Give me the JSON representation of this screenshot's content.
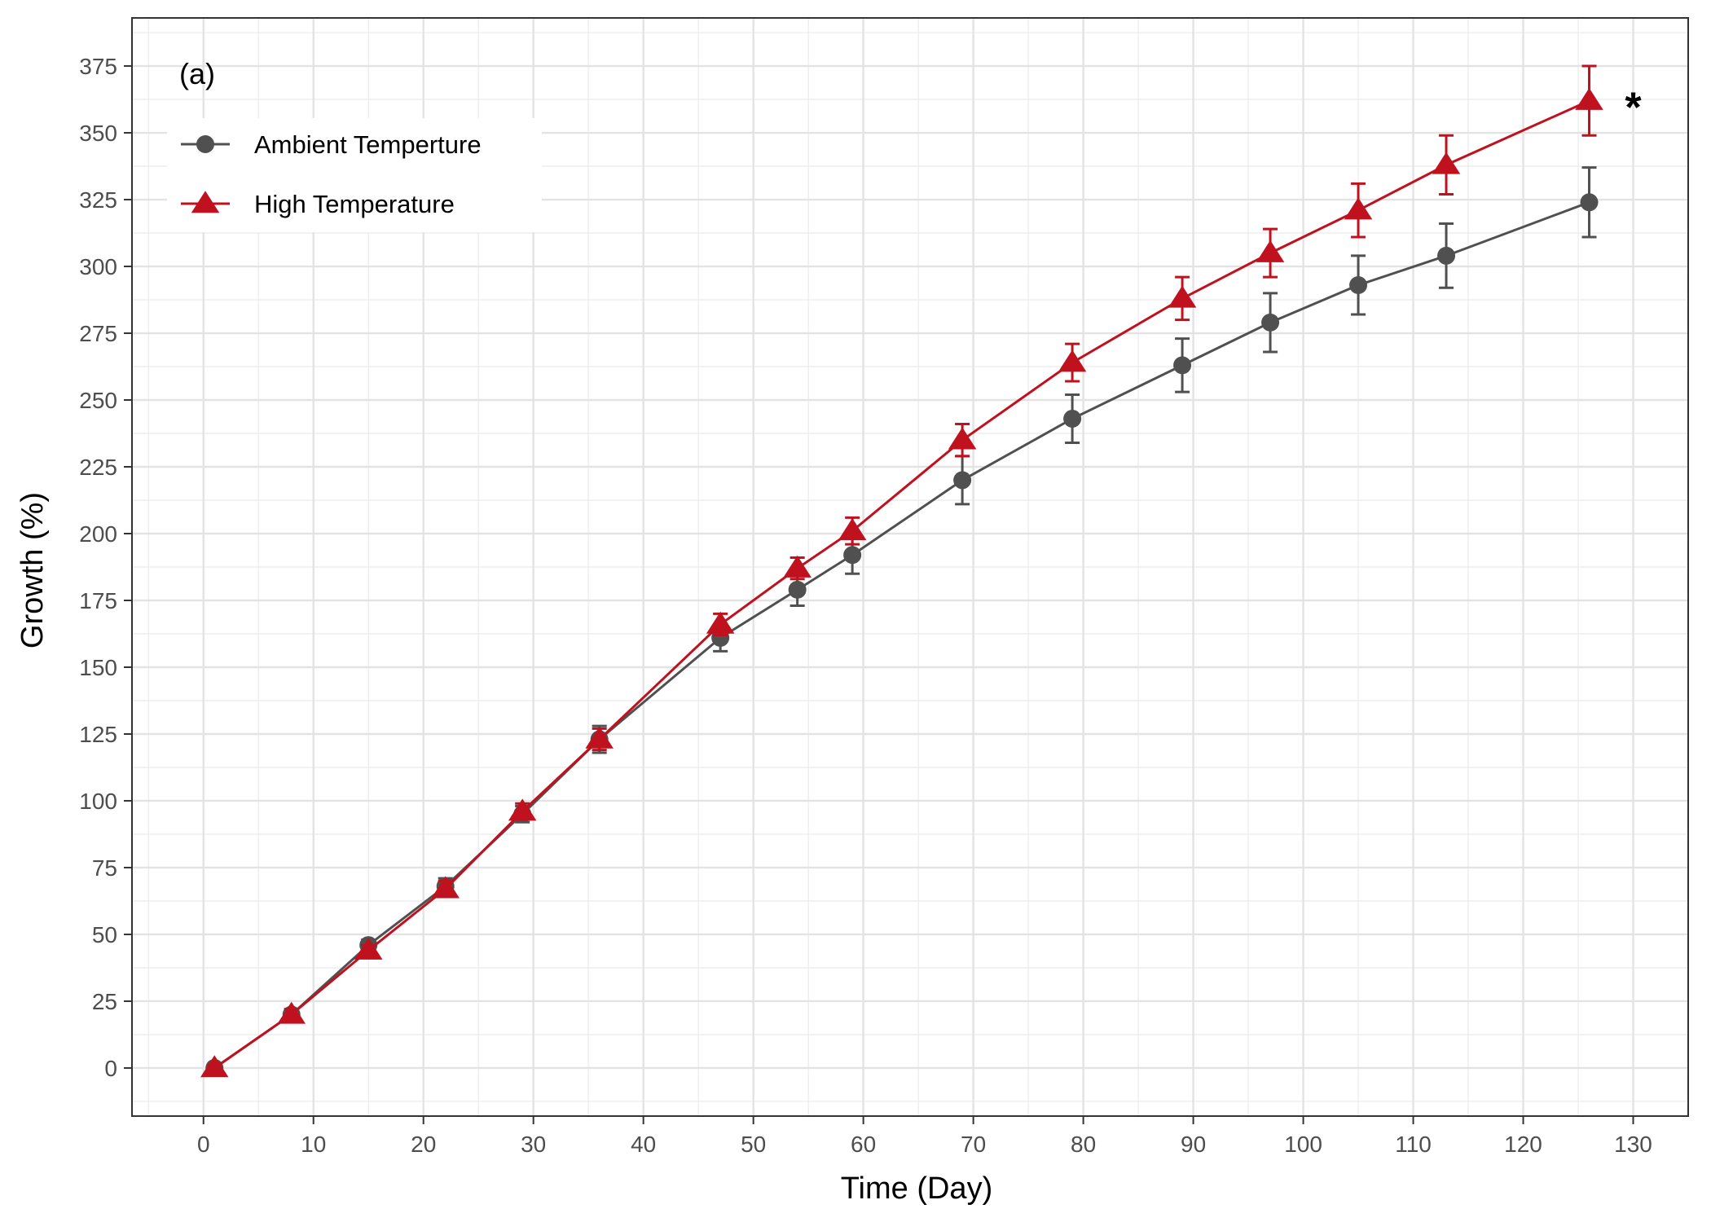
{
  "chart_data": {
    "type": "line",
    "panel_label": "(a)",
    "xlabel": "Time (Day)",
    "ylabel": "Growth (%)",
    "xlim": [
      -6.5,
      135
    ],
    "ylim": [
      -18,
      393
    ],
    "x_ticks": [
      0,
      10,
      20,
      30,
      40,
      50,
      60,
      70,
      80,
      90,
      100,
      110,
      120,
      130
    ],
    "y_ticks": [
      0,
      25,
      50,
      75,
      100,
      125,
      150,
      175,
      200,
      225,
      250,
      275,
      300,
      325,
      350,
      375
    ],
    "grid": true,
    "legend_position": "top-left",
    "annotation": "*",
    "annotation_at": {
      "x": 130,
      "y": 362
    },
    "series": [
      {
        "name": "Ambient Temperture",
        "color": "#505050",
        "marker": "circle",
        "x": [
          1,
          8,
          15,
          22,
          29,
          36,
          47,
          54,
          59,
          69,
          79,
          89,
          97,
          105,
          113,
          126
        ],
        "y": [
          0,
          20,
          46,
          68,
          95,
          123,
          161,
          179,
          192,
          220,
          243,
          263,
          279,
          293,
          304,
          324
        ],
        "err": [
          1,
          2,
          2,
          3,
          3,
          5,
          5,
          6,
          7,
          9,
          9,
          10,
          11,
          11,
          12,
          13
        ]
      },
      {
        "name": "High Temperature",
        "color": "#c0111f",
        "marker": "triangle",
        "x": [
          1,
          8,
          15,
          22,
          29,
          36,
          47,
          54,
          59,
          69,
          79,
          89,
          97,
          105,
          113,
          126
        ],
        "y": [
          0,
          20,
          44,
          67,
          96,
          123,
          166,
          187,
          201,
          235,
          264,
          288,
          305,
          321,
          338,
          362
        ],
        "err": [
          1,
          2,
          2,
          3,
          3,
          4,
          4,
          4,
          5,
          6,
          7,
          8,
          9,
          10,
          11,
          13
        ]
      }
    ]
  }
}
